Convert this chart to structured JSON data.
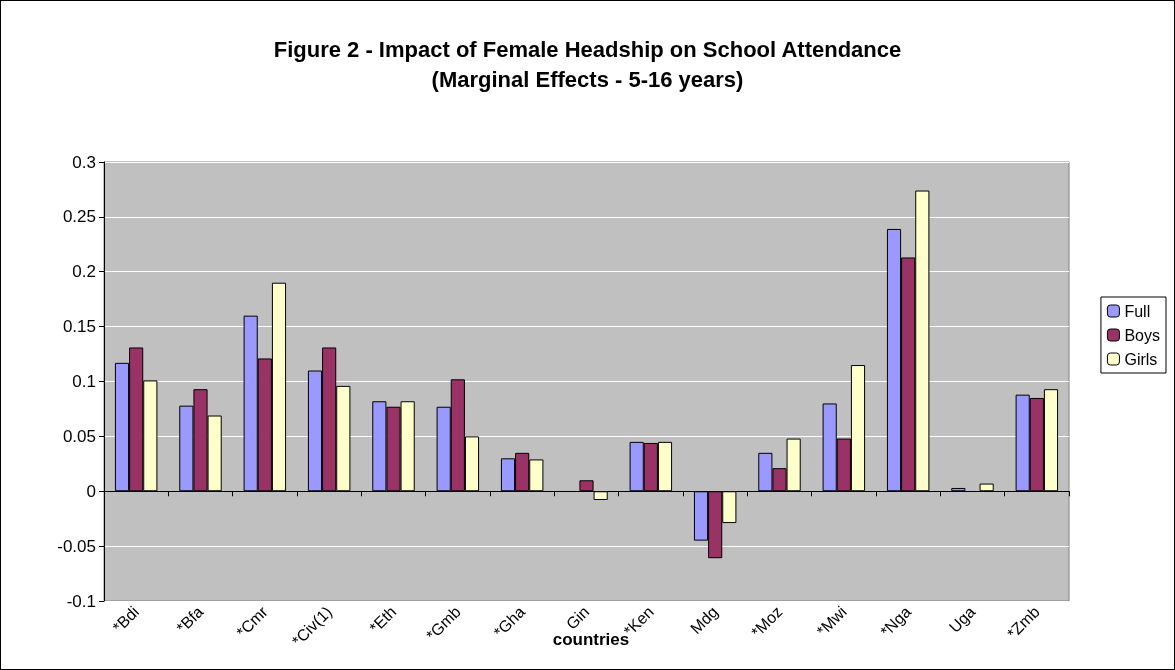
{
  "chart_data": {
    "type": "bar",
    "title": "Figure 2 - Impact of Female Headship on School Attendance\n(Marginal Effects - 5-16 years)",
    "xlabel": "countries",
    "categories": [
      "*Bdi",
      "*Bfa",
      "*Cmr",
      "*Civ(1)",
      "*Eth",
      "*Gmb",
      "*Gha",
      "Gin",
      "*Ken",
      "Mdg",
      "*Moz",
      "*Mwi",
      "*Nga",
      "Uga",
      "*Zmb"
    ],
    "series": [
      {
        "name": "Full",
        "color": "#9999ff",
        "values": [
          0.117,
          0.078,
          0.16,
          0.11,
          0.082,
          0.077,
          0.03,
          null,
          0.045,
          -0.045,
          0.035,
          0.08,
          0.239,
          0.003,
          0.088
        ]
      },
      {
        "name": "Boys",
        "color": "#993366",
        "values": [
          0.131,
          0.093,
          0.121,
          0.131,
          0.077,
          0.102,
          0.035,
          0.01,
          0.044,
          -0.061,
          0.021,
          0.048,
          0.213,
          null,
          0.085
        ]
      },
      {
        "name": "Girls",
        "color": "#ffffcc",
        "values": [
          0.101,
          0.069,
          0.19,
          0.096,
          0.082,
          0.05,
          0.029,
          -0.008,
          0.045,
          -0.029,
          0.048,
          0.115,
          0.274,
          0.007,
          0.093
        ]
      }
    ],
    "ylim": [
      -0.1,
      0.3
    ],
    "yticks": [
      -0.1,
      -0.05,
      0,
      0.05,
      0.1,
      0.15,
      0.2,
      0.25,
      0.3
    ],
    "grid": "y",
    "legend": "right"
  }
}
